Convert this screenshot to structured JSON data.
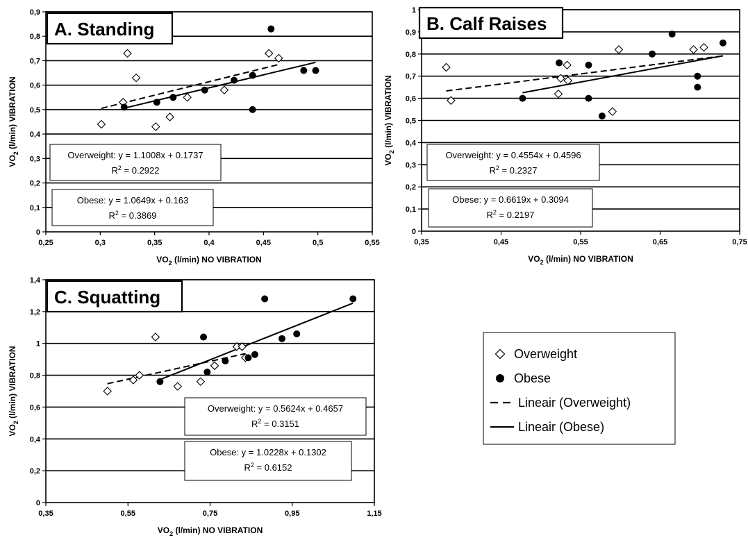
{
  "chart_data": [
    {
      "type": "scatter",
      "title": "A. Standing",
      "xlabel_main": "VO",
      "xlabel_sub": "2",
      "xlabel_rest": " (l/min) NO VIBRATION",
      "ylabel_main": "VO",
      "ylabel_sub": "2",
      "ylabel_rest": " (l/min) VIBRATION",
      "xlim": [
        0.25,
        0.55
      ],
      "ylim": [
        0,
        0.9
      ],
      "xticks": [
        0.25,
        0.3,
        0.35,
        0.4,
        0.45,
        0.5,
        0.55
      ],
      "xtick_labels": [
        "0,25",
        "0,3",
        "0,35",
        "0,4",
        "0,45",
        "0,5",
        "0,55"
      ],
      "yticks": [
        0,
        0.1,
        0.2,
        0.3,
        0.4,
        0.5,
        0.6,
        0.7,
        0.8,
        0.9
      ],
      "ytick_labels": [
        "0",
        "0,1",
        "0,2",
        "0,3",
        "0,4",
        "0,5",
        "0,6",
        "0,7",
        "0,8",
        "0,9"
      ],
      "grid": "horizontal",
      "series": [
        {
          "name": "Overweight",
          "marker": "diamond",
          "x": [
            0.301,
            0.321,
            0.325,
            0.333,
            0.351,
            0.364,
            0.38,
            0.414,
            0.455,
            0.464
          ],
          "y": [
            0.44,
            0.53,
            0.73,
            0.63,
            0.43,
            0.47,
            0.55,
            0.58,
            0.73,
            0.71
          ]
        },
        {
          "name": "Obese",
          "marker": "circle",
          "x": [
            0.322,
            0.352,
            0.367,
            0.396,
            0.423,
            0.44,
            0.44,
            0.457,
            0.487,
            0.498
          ],
          "y": [
            0.51,
            0.53,
            0.55,
            0.58,
            0.62,
            0.64,
            0.5,
            0.83,
            0.66,
            0.66
          ]
        }
      ],
      "trendlines": [
        {
          "series": "Overweight",
          "slope": 1.1008,
          "intercept": 0.1737,
          "x_range": [
            0.301,
            0.464
          ],
          "style": "dashed"
        },
        {
          "series": "Obese",
          "slope": 1.0649,
          "intercept": 0.163,
          "x_range": [
            0.322,
            0.498
          ],
          "style": "solid"
        }
      ],
      "annotations": [
        {
          "line1": "Overweight: y = 1.1008x + 0.1737",
          "r2_prefix": "R",
          "r2_sup": "2",
          "r2_value": " = 0.2922"
        },
        {
          "line1": "Obese: y = 1.0649x + 0.163",
          "r2_prefix": "R",
          "r2_sup": "2",
          "r2_value": " = 0.3869"
        }
      ]
    },
    {
      "type": "scatter",
      "title": "B. Calf Raises",
      "xlabel_main": "VO",
      "xlabel_sub": "2",
      "xlabel_rest": " (l/min) NO VIBRATION",
      "ylabel_main": "VO",
      "ylabel_sub": "2",
      "ylabel_rest": " (l/min) VIBRATION",
      "xlim": [
        0.35,
        0.75
      ],
      "ylim": [
        0,
        1
      ],
      "xticks": [
        0.35,
        0.45,
        0.55,
        0.65,
        0.75
      ],
      "xtick_labels": [
        "0,35",
        "0,45",
        "0,55",
        "0,65",
        "0,75"
      ],
      "yticks": [
        0,
        0.1,
        0.2,
        0.3,
        0.4,
        0.5,
        0.6,
        0.7,
        0.8,
        0.9,
        1
      ],
      "ytick_labels": [
        "0",
        "0,1",
        "0,2",
        "0,3",
        "0,4",
        "0,5",
        "0,6",
        "0,7",
        "0,8",
        "0,9",
        "1"
      ],
      "grid": "horizontal",
      "series": [
        {
          "name": "Overweight",
          "marker": "diamond",
          "x": [
            0.381,
            0.387,
            0.522,
            0.525,
            0.533,
            0.534,
            0.59,
            0.598,
            0.692,
            0.705
          ],
          "y": [
            0.74,
            0.59,
            0.62,
            0.69,
            0.75,
            0.68,
            0.54,
            0.82,
            0.82,
            0.83
          ],
          "note": ""
        },
        {
          "name": "Obese",
          "marker": "circle",
          "x": [
            0.477,
            0.523,
            0.56,
            0.56,
            0.577,
            0.64,
            0.665,
            0.697,
            0.697,
            0.729
          ],
          "y": [
            0.6,
            0.76,
            0.75,
            0.6,
            0.52,
            0.8,
            0.89,
            0.7,
            0.65,
            0.85
          ]
        }
      ],
      "trendlines": [
        {
          "series": "Overweight",
          "slope": 0.4554,
          "intercept": 0.4596,
          "x_range": [
            0.381,
            0.729
          ],
          "style": "dashed"
        },
        {
          "series": "Obese",
          "slope": 0.6619,
          "intercept": 0.3094,
          "x_range": [
            0.477,
            0.729
          ],
          "style": "solid"
        }
      ],
      "annotations": [
        {
          "line1": "Overweight: y = 0.4554x + 0.4596",
          "r2_prefix": "R",
          "r2_sup": "2",
          "r2_value": " = 0.2327"
        },
        {
          "line1": "Obese: y = 0.6619x + 0.3094",
          "r2_prefix": "R",
          "r2_sup": "2",
          "r2_value": " = 0.2197"
        }
      ]
    },
    {
      "type": "scatter",
      "title": "C. Squatting",
      "xlabel_main": "VO",
      "xlabel_sub": "2",
      "xlabel_rest": " (l/min) NO VIBRATION",
      "ylabel_main": "VO",
      "ylabel_sub": "2",
      "ylabel_rest": " (l/min) VIBRATION",
      "xlim": [
        0.35,
        1.15
      ],
      "ylim": [
        0,
        1.4
      ],
      "xticks": [
        0.35,
        0.55,
        0.75,
        0.95,
        1.15
      ],
      "xtick_labels": [
        "0,35",
        "0,55",
        "0,75",
        "0,95",
        "1,15"
      ],
      "yticks": [
        0,
        0.2,
        0.4,
        0.6,
        0.8,
        1,
        1.2,
        1.4
      ],
      "ytick_labels": [
        "0",
        "0,2",
        "0,4",
        "0,6",
        "0,8",
        "1",
        "1,2",
        "1,4"
      ],
      "grid": "horizontal",
      "series": [
        {
          "name": "Overweight",
          "marker": "diamond",
          "x": [
            0.5,
            0.563,
            0.578,
            0.617,
            0.671,
            0.727,
            0.761,
            0.815,
            0.828,
            0.836
          ],
          "y": [
            0.7,
            0.77,
            0.8,
            1.04,
            0.73,
            0.76,
            0.86,
            0.98,
            0.98,
            0.91
          ]
        },
        {
          "name": "Obese",
          "marker": "circle",
          "x": [
            0.628,
            0.734,
            0.743,
            0.787,
            0.843,
            0.859,
            0.883,
            0.925,
            0.961,
            1.098
          ],
          "y": [
            0.76,
            1.04,
            0.82,
            0.89,
            0.91,
            0.93,
            1.28,
            1.03,
            1.06,
            1.28
          ]
        }
      ],
      "trendlines": [
        {
          "series": "Overweight",
          "slope": 0.5624,
          "intercept": 0.4657,
          "x_range": [
            0.5,
            0.836
          ],
          "style": "dashed"
        },
        {
          "series": "Obese",
          "slope": 1.0228,
          "intercept": 0.1302,
          "x_range": [
            0.628,
            1.098
          ],
          "style": "solid"
        }
      ],
      "annotations": [
        {
          "line1": "Overweight: y = 0.5624x + 0.4657",
          "r2_prefix": "R",
          "r2_sup": "2",
          "r2_value": " = 0.3151"
        },
        {
          "line1": "Obese: y = 1.0228x + 0.1302",
          "r2_prefix": "R",
          "r2_sup": "2",
          "r2_value": " = 0.6152"
        }
      ]
    }
  ],
  "legend": {
    "items": [
      {
        "label": "Overweight",
        "symbol": "diamond-marker"
      },
      {
        "label": "Obese",
        "symbol": "circle-marker"
      },
      {
        "label": "Lineair (Overweight)",
        "symbol": "dashed-line"
      },
      {
        "label": "Lineair (Obese)",
        "symbol": "solid-line"
      }
    ]
  }
}
